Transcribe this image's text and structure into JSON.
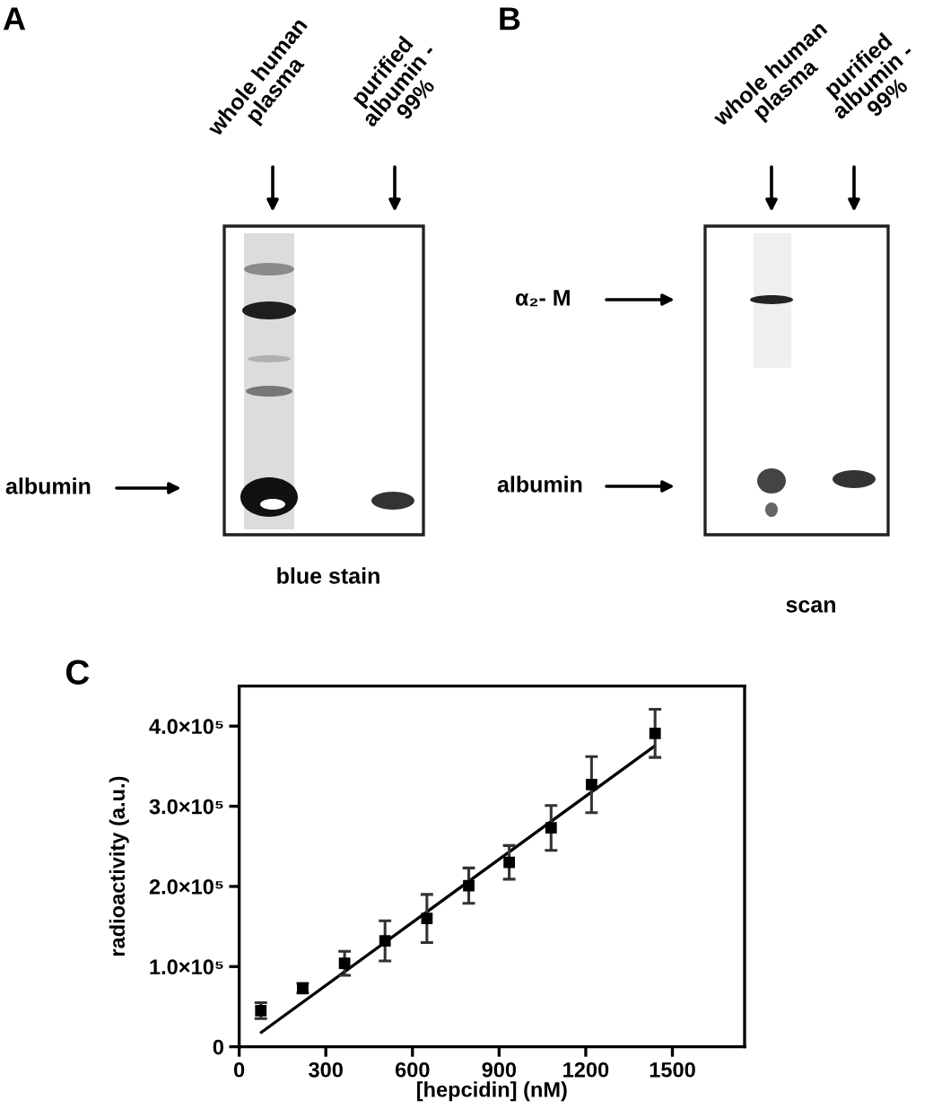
{
  "chart_data": [
    {
      "type": "other",
      "title": "A",
      "annotations": [
        "whole human\nplasma",
        "purified\nalbumin -\n99%",
        "albumin",
        "blue stain"
      ]
    },
    {
      "type": "other",
      "title": "B",
      "annotations": [
        "whole human\nplasma",
        "purified\nalbumin -\n99%",
        "α₂- M",
        "albumin",
        "scan"
      ]
    },
    {
      "type": "scatter",
      "title": "C",
      "xlabel": "[hepcidin] (nM)",
      "ylabel": "radioactivity (a.u.)",
      "series": [
        {
          "type": "scatter",
          "color": "#000000",
          "marker": "square",
          "x": [
            75,
            220,
            365,
            505,
            650,
            795,
            935,
            1080,
            1220,
            1440
          ],
          "values": [
            45000,
            73000,
            104000,
            132000,
            160000,
            201000,
            230000,
            273000,
            327000,
            391000
          ],
          "errors": [
            10000,
            6000,
            15000,
            25000,
            30000,
            22000,
            21000,
            28000,
            35000,
            30000
          ]
        },
        {
          "type": "line",
          "color": "#000000",
          "marker": "none",
          "line_style": "solid",
          "x": [
            77,
            1438
          ],
          "values": [
            18000,
            375000
          ]
        }
      ],
      "xlim": [
        0,
        1750
      ],
      "ylim": [
        0,
        450000
      ],
      "xticks": [
        0,
        300,
        600,
        900,
        1200,
        1500
      ],
      "yticks": [
        0,
        {
          "value": 100000,
          "label": "1.0×10⁵"
        },
        {
          "value": 200000,
          "label": "2.0×10⁵"
        },
        {
          "value": 300000,
          "label": "3.0×10⁵"
        },
        {
          "value": 400000,
          "label": "4.0×10⁵"
        }
      ]
    }
  ]
}
